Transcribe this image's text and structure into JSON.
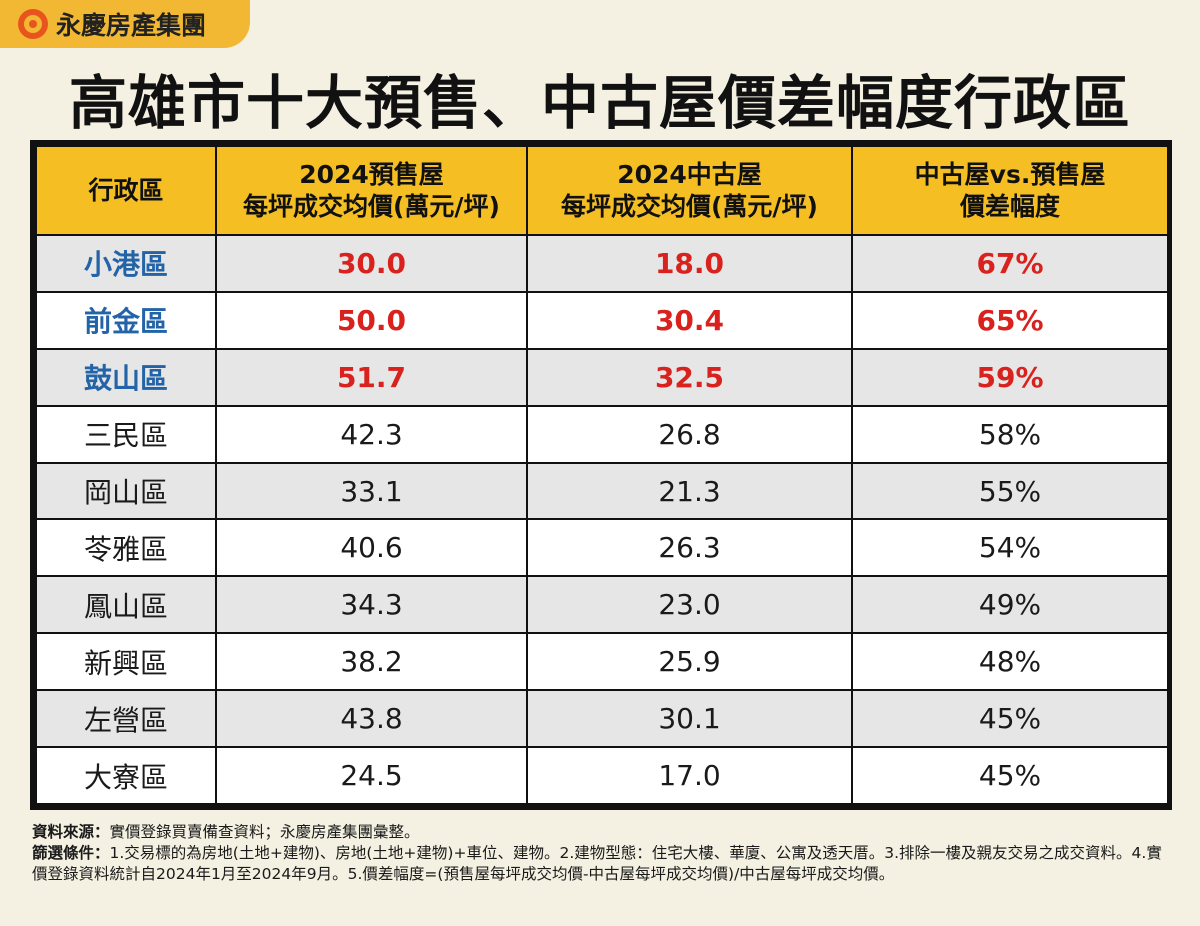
{
  "brand": {
    "name": "永慶房產集團",
    "logo_icon": "yungching-circle-logo-icon"
  },
  "title": "高雄市十大預售、中古屋價差幅度行政區",
  "table": {
    "headers": [
      [
        "行政區"
      ],
      [
        "2024預售屋",
        "每坪成交均價(萬元/坪)"
      ],
      [
        "2024中古屋",
        "每坪成交均價(萬元/坪)"
      ],
      [
        "中古屋vs.預售屋",
        "價差幅度"
      ]
    ],
    "rows": [
      {
        "district": "小港區",
        "presale": "30.0",
        "used": "18.0",
        "gap": "67%",
        "highlight": true
      },
      {
        "district": "前金區",
        "presale": "50.0",
        "used": "30.4",
        "gap": "65%",
        "highlight": true
      },
      {
        "district": "鼓山區",
        "presale": "51.7",
        "used": "32.5",
        "gap": "59%",
        "highlight": true
      },
      {
        "district": "三民區",
        "presale": "42.3",
        "used": "26.8",
        "gap": "58%",
        "highlight": false
      },
      {
        "district": "岡山區",
        "presale": "33.1",
        "used": "21.3",
        "gap": "55%",
        "highlight": false
      },
      {
        "district": "苓雅區",
        "presale": "40.6",
        "used": "26.3",
        "gap": "54%",
        "highlight": false
      },
      {
        "district": "鳳山區",
        "presale": "34.3",
        "used": "23.0",
        "gap": "49%",
        "highlight": false
      },
      {
        "district": "新興區",
        "presale": "38.2",
        "used": "25.9",
        "gap": "48%",
        "highlight": false
      },
      {
        "district": "左營區",
        "presale": "43.8",
        "used": "30.1",
        "gap": "45%",
        "highlight": false
      },
      {
        "district": "大寮區",
        "presale": "24.5",
        "used": "17.0",
        "gap": "45%",
        "highlight": false
      }
    ]
  },
  "chart_data": {
    "type": "table",
    "title": "高雄市十大預售、中古屋價差幅度行政區",
    "columns": [
      "行政區",
      "2024預售屋 每坪成交均價(萬元/坪)",
      "2024中古屋 每坪成交均價(萬元/坪)",
      "中古屋vs.預售屋 價差幅度"
    ],
    "categories": [
      "小港區",
      "前金區",
      "鼓山區",
      "三民區",
      "岡山區",
      "苓雅區",
      "鳳山區",
      "新興區",
      "左營區",
      "大寮區"
    ],
    "series": [
      {
        "name": "2024預售屋 每坪成交均價(萬元/坪)",
        "values": [
          30.0,
          50.0,
          51.7,
          42.3,
          33.1,
          40.6,
          34.3,
          38.2,
          43.8,
          24.5
        ]
      },
      {
        "name": "2024中古屋 每坪成交均價(萬元/坪)",
        "values": [
          18.0,
          30.4,
          32.5,
          26.8,
          21.3,
          26.3,
          23.0,
          25.9,
          30.1,
          17.0
        ]
      },
      {
        "name": "中古屋vs.預售屋 價差幅度",
        "values": [
          67,
          65,
          59,
          58,
          55,
          54,
          49,
          48,
          45,
          45
        ]
      }
    ]
  },
  "notes": {
    "source_label": "資料來源：",
    "source_text": "實價登錄買賣備查資料；永慶房產集團彙整。",
    "filter_label": "篩選條件：",
    "filter_text": "1.交易標的為房地(土地+建物)、房地(土地+建物)+車位、建物。2.建物型態：住宅大樓、華廈、公寓及透天厝。3.排除一樓及親友交易之成交資料。4.實價登錄資料統計自2024年1月至2024年9月。5.價差幅度=(預售屋每坪成交均價-中古屋每坪成交均價)/中古屋每坪成交均價。"
  },
  "colors": {
    "background": "#f4f1e2",
    "header_fill": "#f5be23",
    "brand_tab": "#f2b833",
    "logo_orange": "#e8541e",
    "district_highlight": "#2363a8",
    "value_highlight": "#d9211d"
  }
}
